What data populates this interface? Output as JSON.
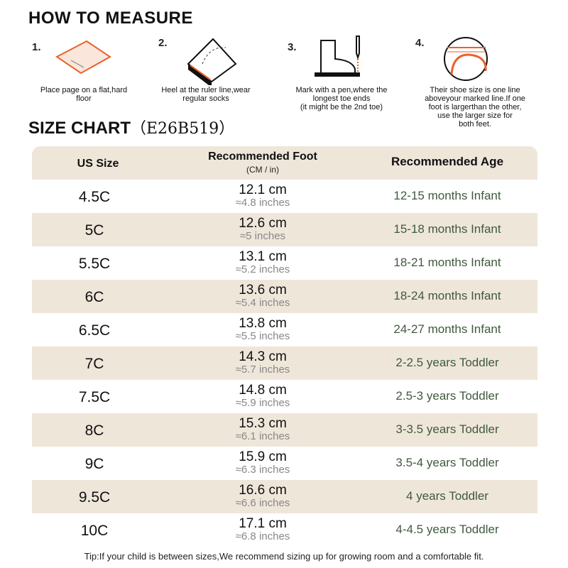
{
  "header": {
    "title": "HOW TO MEASURE"
  },
  "steps": [
    {
      "number": "1.",
      "lines": [
        "Place page on a flat,hard",
        "floor"
      ]
    },
    {
      "number": "2.",
      "lines": [
        "Heel at the ruler line,wear",
        "regular socks"
      ]
    },
    {
      "number": "3.",
      "lines": [
        "Mark with a pen,where the",
        "longest toe ends",
        "(it might be the 2nd toe)"
      ]
    },
    {
      "number": "4.",
      "lines": [
        "Their shoe size is one line",
        "aboveyour marked line.If one",
        "foot is largerthan the other,",
        "use the larger size for",
        "both feet."
      ]
    }
  ],
  "size_chart": {
    "title": "SIZE CHART",
    "code": "（E26B519）"
  },
  "table": {
    "headers": [
      "US Size",
      "Recommended Foot",
      "Recommended Age"
    ],
    "subheader": "(CM / in)",
    "rows": [
      [
        "4.5C",
        "12.1 cm",
        "≈4.8 inches",
        "12-15 months Infant"
      ],
      [
        "5C",
        "12.6 cm",
        "≈5 inches",
        "15-18 months Infant"
      ],
      [
        "5.5C",
        "13.1 cm",
        "≈5.2 inches",
        "18-21 months Infant"
      ],
      [
        "6C",
        "13.6 cm",
        "≈5.4 inches",
        "18-24 months Infant"
      ],
      [
        "6.5C",
        "13.8 cm",
        "≈5.5 inches",
        "24-27 months Infant"
      ],
      [
        "7C",
        "14.3 cm",
        "≈5.7 inches",
        "2-2.5 years Toddler"
      ],
      [
        "7.5C",
        "14.8 cm",
        "≈5.9 inches",
        "2.5-3 years Toddler"
      ],
      [
        "8C",
        "15.3 cm",
        "≈6.1 inches",
        "3-3.5 years Toddler"
      ],
      [
        "9C",
        "15.9 cm",
        "≈6.3 inches",
        "3.5-4 years Toddler"
      ],
      [
        "9.5C",
        "16.6 cm",
        "≈6.6 inches",
        "4 years Toddler"
      ],
      [
        "10C",
        "17.1 cm",
        "≈6.8 inches",
        "4-4.5 years Toddler"
      ]
    ]
  },
  "tip": "Tip:If your child is between sizes,We recommend sizing up for growing room and a comfortable fit."
}
